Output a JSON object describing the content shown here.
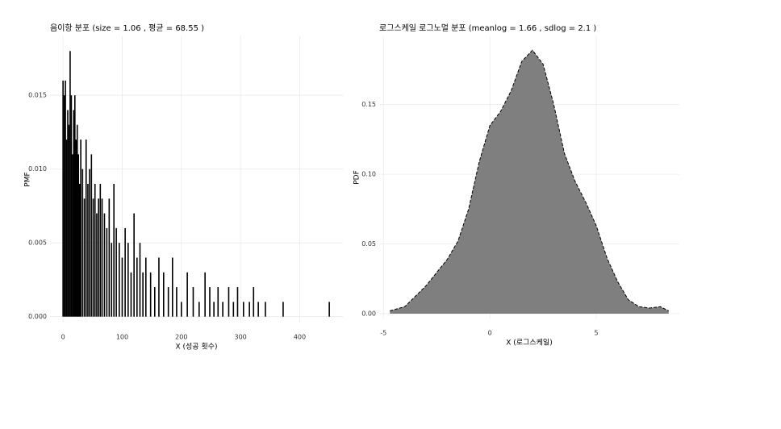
{
  "chart_data": [
    {
      "type": "spike",
      "title": "음이항 분포 (size = 1.06 , 평균 = 68.55 )",
      "x_label": "X (성공 횟수)",
      "y_label": "PMF",
      "x": [
        0,
        2,
        4,
        6,
        8,
        10,
        12,
        14,
        16,
        18,
        20,
        22,
        24,
        26,
        28,
        30,
        33,
        36,
        39,
        42,
        45,
        48,
        51,
        54,
        57,
        60,
        63,
        66,
        70,
        74,
        78,
        82,
        86,
        90,
        95,
        100,
        105,
        110,
        115,
        120,
        125,
        130,
        135,
        140,
        148,
        155,
        162,
        170,
        178,
        185,
        192,
        200,
        210,
        220,
        230,
        240,
        248,
        255,
        262,
        270,
        280,
        288,
        295,
        305,
        315,
        322,
        330,
        342,
        372,
        450
      ],
      "values": [
        0.016,
        0.015,
        0.016,
        0.012,
        0.014,
        0.013,
        0.018,
        0.015,
        0.011,
        0.014,
        0.015,
        0.012,
        0.013,
        0.011,
        0.009,
        0.012,
        0.01,
        0.008,
        0.012,
        0.009,
        0.01,
        0.011,
        0.008,
        0.009,
        0.007,
        0.008,
        0.009,
        0.008,
        0.007,
        0.006,
        0.008,
        0.005,
        0.009,
        0.006,
        0.005,
        0.004,
        0.006,
        0.005,
        0.003,
        0.007,
        0.004,
        0.005,
        0.003,
        0.004,
        0.003,
        0.002,
        0.004,
        0.003,
        0.002,
        0.004,
        0.002,
        0.001,
        0.003,
        0.002,
        0.001,
        0.003,
        0.002,
        0.001,
        0.002,
        0.001,
        0.002,
        0.001,
        0.002,
        0.001,
        0.001,
        0.002,
        0.001,
        0.001,
        0.001,
        0.001
      ],
      "color": "#000000",
      "xlim": [
        -22,
        473
      ],
      "xticks": [
        0,
        100,
        200,
        300,
        400
      ],
      "ylim": [
        -0.0004,
        0.019
      ],
      "yticks": [
        {
          "value": 0,
          "label": "0.000"
        },
        {
          "value": 0.005,
          "label": "0.005"
        },
        {
          "value": 0.01,
          "label": "0.010"
        },
        {
          "value": 0.015,
          "label": "0.015"
        }
      ],
      "grid": true
    },
    {
      "type": "area",
      "title": "로그스케일 로그노멀 분포 (meanlog = 1.66 , sdlog = 2.1 )",
      "x_label": "X (로그스케일)",
      "y_label": "PDF",
      "x": [
        -4.7,
        -4,
        -3,
        -2,
        -1.5,
        -1,
        -0.5,
        0,
        0.5,
        1,
        1.5,
        2,
        2.5,
        3,
        3.5,
        4,
        4.5,
        5,
        5.5,
        6,
        6.5,
        7,
        7.5,
        8,
        8.4
      ],
      "values": [
        0.002,
        0.005,
        0.02,
        0.039,
        0.052,
        0.075,
        0.109,
        0.135,
        0.145,
        0.16,
        0.181,
        0.189,
        0.179,
        0.15,
        0.115,
        0.095,
        0.08,
        0.063,
        0.04,
        0.023,
        0.01,
        0.005,
        0.004,
        0.005,
        0.002
      ],
      "color": "#7f7f7f",
      "xlim": [
        -5.2,
        8.9
      ],
      "xticks": [
        -5,
        0,
        5
      ],
      "ylim": [
        -0.0035,
        0.199
      ],
      "yticks": [
        {
          "value": 0,
          "label": "0.00"
        },
        {
          "value": 0.05,
          "label": "0.05"
        },
        {
          "value": 0.1,
          "label": "0.10"
        },
        {
          "value": 0.15,
          "label": "0.15"
        }
      ],
      "grid": true
    }
  ]
}
